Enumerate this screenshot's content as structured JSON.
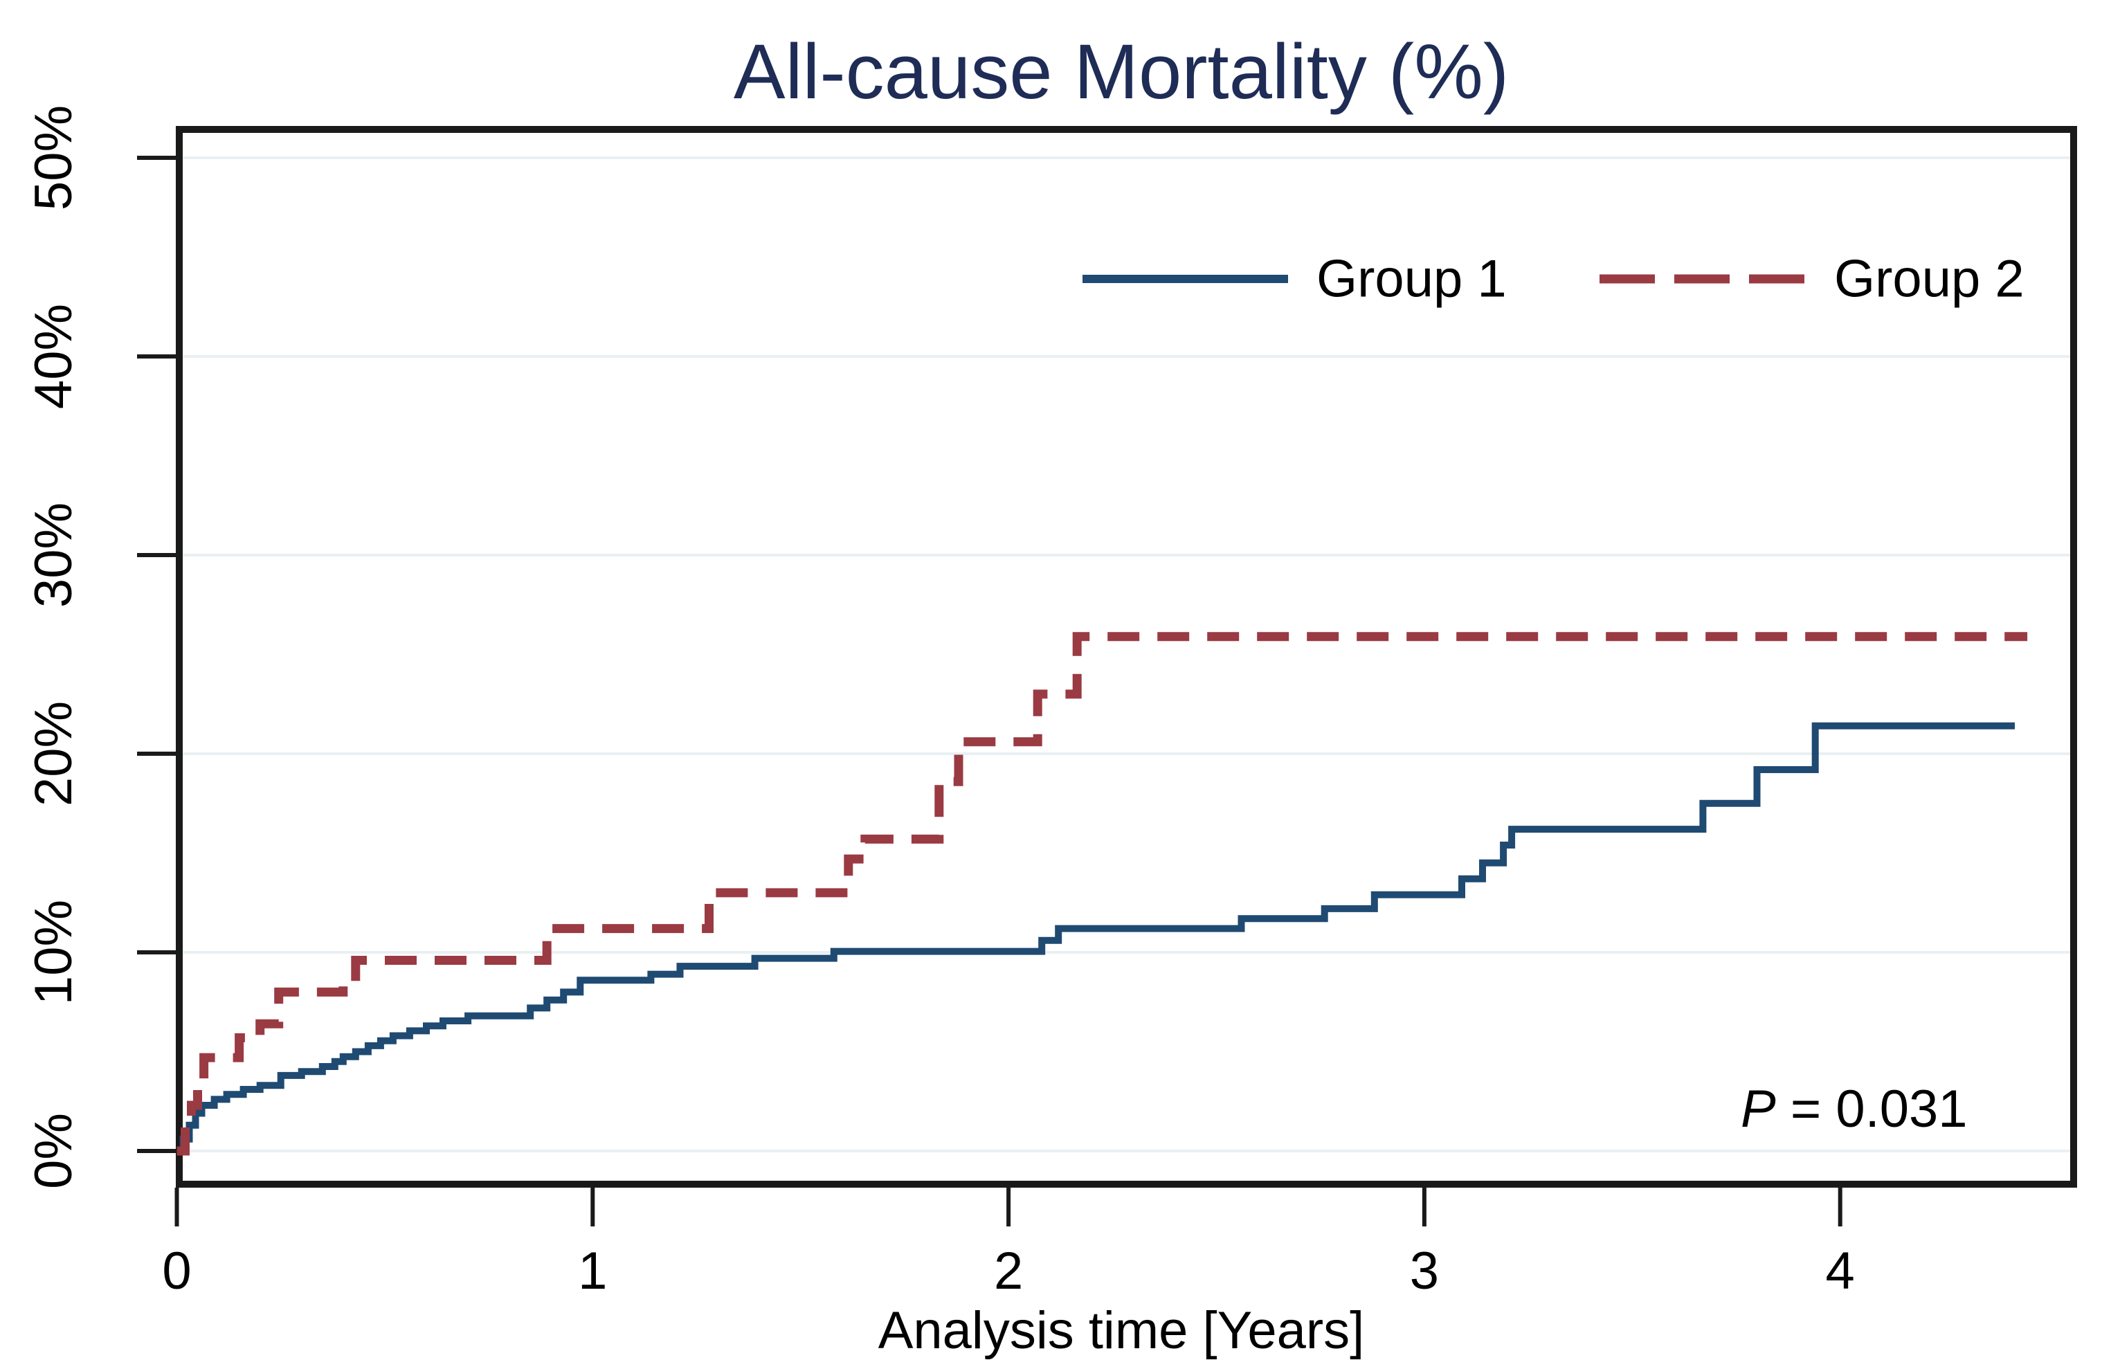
{
  "title": "All-cause Mortality (%)",
  "x_axis": {
    "label": "Analysis time [Years]",
    "ticks": [
      "0",
      "1",
      "2",
      "3",
      "4"
    ],
    "tick_values": [
      0,
      1,
      2,
      3,
      4
    ]
  },
  "y_axis": {
    "ticks": [
      "0%",
      "10%",
      "20%",
      "30%",
      "40%",
      "50%"
    ],
    "tick_values": [
      0,
      10,
      20,
      30,
      40,
      50
    ]
  },
  "legend": {
    "items": [
      {
        "label": "Group 1",
        "style": "solid",
        "color": "#1f4a72"
      },
      {
        "label": "Group 2",
        "style": "dashed",
        "color": "#9a3a42"
      }
    ]
  },
  "annotation": {
    "p_symbol": "P",
    "p_rest": " = 0.031"
  },
  "colors": {
    "title": "#1e2c56",
    "group1": "#1f4a72",
    "group2": "#9a3a42",
    "axis": "#1a1a1a",
    "gridline": "#e9f0f3",
    "text": "#000000"
  },
  "chart_data": {
    "type": "line",
    "subtype": "kaplan-meier-step",
    "title": "All-cause Mortality (%)",
    "xlabel": "Analysis time [Years]",
    "ylabel": "",
    "xlim": [
      0,
      4.57
    ],
    "ylim_pct": [
      0,
      51.5
    ],
    "grid": "horizontal",
    "legend_position": "top-right-inside",
    "p_value": "P = 0.031",
    "series": [
      {
        "name": "Group 1",
        "style": "solid",
        "color": "#1f4a72",
        "points_t_pct": [
          [
            0,
            0
          ],
          [
            0.015,
            0.6
          ],
          [
            0.03,
            1.3
          ],
          [
            0.045,
            1.9
          ],
          [
            0.06,
            2.3
          ],
          [
            0.09,
            2.6
          ],
          [
            0.12,
            2.85
          ],
          [
            0.16,
            3.1
          ],
          [
            0.2,
            3.3
          ],
          [
            0.25,
            3.8
          ],
          [
            0.3,
            4.0
          ],
          [
            0.35,
            4.25
          ],
          [
            0.38,
            4.5
          ],
          [
            0.4,
            4.75
          ],
          [
            0.43,
            5.0
          ],
          [
            0.46,
            5.3
          ],
          [
            0.49,
            5.55
          ],
          [
            0.52,
            5.8
          ],
          [
            0.56,
            6.05
          ],
          [
            0.6,
            6.3
          ],
          [
            0.64,
            6.55
          ],
          [
            0.7,
            6.8
          ],
          [
            0.85,
            7.2
          ],
          [
            0.89,
            7.6
          ],
          [
            0.93,
            8.0
          ],
          [
            0.97,
            8.6
          ],
          [
            1.14,
            8.9
          ],
          [
            1.21,
            9.3
          ],
          [
            1.39,
            9.7
          ],
          [
            1.58,
            10.05
          ],
          [
            2.08,
            10.6
          ],
          [
            2.12,
            11.2
          ],
          [
            2.56,
            11.7
          ],
          [
            2.76,
            12.2
          ],
          [
            2.88,
            12.9
          ],
          [
            3.09,
            13.7
          ],
          [
            3.14,
            14.5
          ],
          [
            3.19,
            15.4
          ],
          [
            3.21,
            16.2
          ],
          [
            3.67,
            17.5
          ],
          [
            3.8,
            19.2
          ],
          [
            3.94,
            21.4
          ],
          [
            4.42,
            21.4
          ]
        ]
      },
      {
        "name": "Group 2",
        "style": "dashed",
        "color": "#9a3a42",
        "points_t_pct": [
          [
            0,
            0
          ],
          [
            0.02,
            1.4
          ],
          [
            0.035,
            2.3
          ],
          [
            0.05,
            3.3
          ],
          [
            0.065,
            4.7
          ],
          [
            0.15,
            5.7
          ],
          [
            0.2,
            6.4
          ],
          [
            0.245,
            8.0
          ],
          [
            0.4,
            8.35
          ],
          [
            0.43,
            9.6
          ],
          [
            0.89,
            11.2
          ],
          [
            1.28,
            13.0
          ],
          [
            1.615,
            14.7
          ],
          [
            1.655,
            15.7
          ],
          [
            1.833,
            18.6
          ],
          [
            1.88,
            20.6
          ],
          [
            2.07,
            23.0
          ],
          [
            2.165,
            25.9
          ],
          [
            4.45,
            25.9
          ]
        ]
      }
    ]
  }
}
